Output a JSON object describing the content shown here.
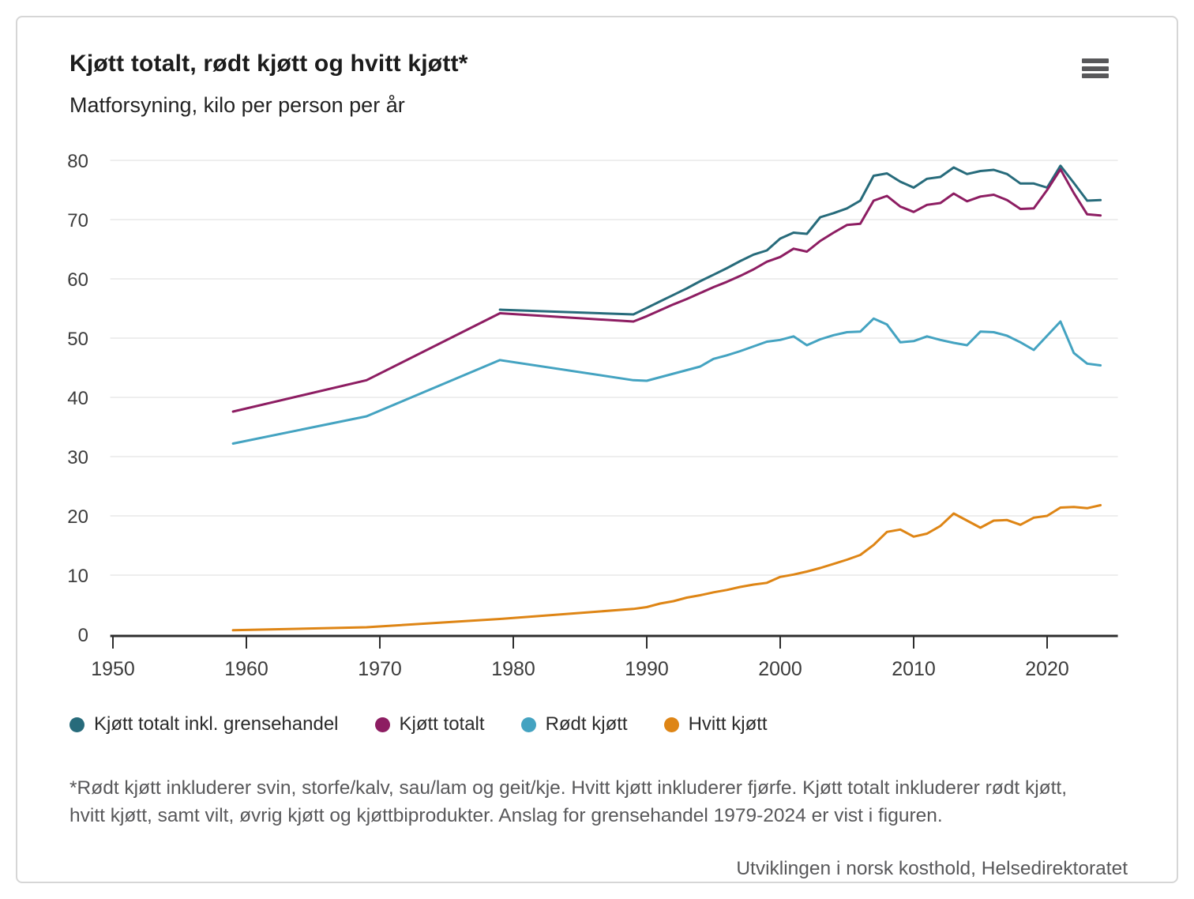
{
  "header": {
    "title": "Kjøtt totalt, rødt kjøtt og hvitt kjøtt*",
    "subtitle": "Matforsyning, kilo per person per år",
    "menu_icon": "hamburger-icon"
  },
  "footnote": "*Rødt kjøtt inkluderer svin, storfe/kalv, sau/lam og geit/kje. Hvitt kjøtt inkluderer fjørfe. Kjøtt totalt inkluderer rødt kjøtt, hvitt kjøtt, samt vilt, øvrig kjøtt og kjøttbiprodukter. Anslag for grensehandel 1979-2024 er vist i figuren.",
  "source": "Utviklingen i norsk kosthold, Helsedirektoratet",
  "style": {
    "background": "#ffffff",
    "card_border": "#d6d6d6",
    "grid_color": "#e8e8e8",
    "axis_color": "#2d2d2d",
    "tick_color": "#3c3c3c",
    "title_color": "#1c1c1c",
    "muted_text_color": "#58585a"
  },
  "chart_data": {
    "type": "line",
    "title": "Kjøtt totalt, rødt kjøtt og hvitt kjøtt*",
    "subtitle": "Matforsyning, kilo per person per år",
    "xlabel": "",
    "ylabel": "kilo per person per år",
    "xlim": [
      1949.8,
      2025.3
    ],
    "ylim": [
      0,
      80
    ],
    "xticks": [
      1950,
      1960,
      1970,
      1980,
      1990,
      2000,
      2010,
      2020
    ],
    "yticks": [
      0,
      10,
      20,
      30,
      40,
      50,
      60,
      70,
      80
    ],
    "grid": true,
    "legend_position": "bottom",
    "series": [
      {
        "name": "Kjøtt totalt inkl. grensehandel",
        "color": "#276b7b",
        "points": [
          [
            1979,
            54.8
          ],
          [
            1989,
            54.0
          ],
          [
            1990,
            55.1
          ],
          [
            1991,
            56.2
          ],
          [
            1992,
            57.3
          ],
          [
            1993,
            58.4
          ],
          [
            1994,
            59.6
          ],
          [
            1995,
            60.7
          ],
          [
            1996,
            61.8
          ],
          [
            1997,
            63.0
          ],
          [
            1998,
            64.1
          ],
          [
            1999,
            64.8
          ],
          [
            2000,
            66.8
          ],
          [
            2001,
            67.8
          ],
          [
            2002,
            67.6
          ],
          [
            2003,
            70.4
          ],
          [
            2004,
            71.1
          ],
          [
            2005,
            71.9
          ],
          [
            2006,
            73.2
          ],
          [
            2007,
            77.4
          ],
          [
            2008,
            77.8
          ],
          [
            2009,
            76.4
          ],
          [
            2010,
            75.4
          ],
          [
            2011,
            76.9
          ],
          [
            2012,
            77.2
          ],
          [
            2013,
            78.8
          ],
          [
            2014,
            77.7
          ],
          [
            2015,
            78.2
          ],
          [
            2016,
            78.4
          ],
          [
            2017,
            77.7
          ],
          [
            2018,
            76.1
          ],
          [
            2019,
            76.1
          ],
          [
            2020,
            75.4
          ],
          [
            2021,
            79.1
          ],
          [
            2022,
            76.2
          ],
          [
            2023,
            73.2
          ],
          [
            2024,
            73.3
          ]
        ]
      },
      {
        "name": "Kjøtt totalt",
        "color": "#8d1d62",
        "points": [
          [
            1959,
            37.6
          ],
          [
            1969,
            42.9
          ],
          [
            1979,
            54.2
          ],
          [
            1989,
            52.8
          ],
          [
            1990,
            53.7
          ],
          [
            1991,
            54.7
          ],
          [
            1992,
            55.7
          ],
          [
            1993,
            56.6
          ],
          [
            1994,
            57.6
          ],
          [
            1995,
            58.6
          ],
          [
            1996,
            59.5
          ],
          [
            1997,
            60.5
          ],
          [
            1998,
            61.6
          ],
          [
            1999,
            62.9
          ],
          [
            2000,
            63.7
          ],
          [
            2001,
            65.1
          ],
          [
            2002,
            64.6
          ],
          [
            2003,
            66.4
          ],
          [
            2004,
            67.8
          ],
          [
            2005,
            69.1
          ],
          [
            2006,
            69.3
          ],
          [
            2007,
            73.2
          ],
          [
            2008,
            74.0
          ],
          [
            2009,
            72.2
          ],
          [
            2010,
            71.3
          ],
          [
            2011,
            72.5
          ],
          [
            2012,
            72.8
          ],
          [
            2013,
            74.4
          ],
          [
            2014,
            73.1
          ],
          [
            2015,
            73.9
          ],
          [
            2016,
            74.2
          ],
          [
            2017,
            73.3
          ],
          [
            2018,
            71.8
          ],
          [
            2019,
            71.9
          ],
          [
            2020,
            75.0
          ],
          [
            2021,
            78.5
          ],
          [
            2022,
            74.5
          ],
          [
            2023,
            70.9
          ],
          [
            2024,
            70.7
          ]
        ]
      },
      {
        "name": "Rødt kjøtt",
        "color": "#44a3c1",
        "points": [
          [
            1959,
            32.2
          ],
          [
            1969,
            36.8
          ],
          [
            1979,
            46.3
          ],
          [
            1989,
            42.9
          ],
          [
            1990,
            42.8
          ],
          [
            1991,
            43.4
          ],
          [
            1992,
            44.0
          ],
          [
            1993,
            44.6
          ],
          [
            1994,
            45.2
          ],
          [
            1995,
            46.5
          ],
          [
            1996,
            47.1
          ],
          [
            1997,
            47.8
          ],
          [
            1998,
            48.6
          ],
          [
            1999,
            49.4
          ],
          [
            2000,
            49.7
          ],
          [
            2001,
            50.3
          ],
          [
            2002,
            48.8
          ],
          [
            2003,
            49.8
          ],
          [
            2004,
            50.5
          ],
          [
            2005,
            51.0
          ],
          [
            2006,
            51.1
          ],
          [
            2007,
            53.3
          ],
          [
            2008,
            52.3
          ],
          [
            2009,
            49.3
          ],
          [
            2010,
            49.5
          ],
          [
            2011,
            50.3
          ],
          [
            2012,
            49.7
          ],
          [
            2013,
            49.2
          ],
          [
            2014,
            48.8
          ],
          [
            2015,
            51.1
          ],
          [
            2016,
            51.0
          ],
          [
            2017,
            50.4
          ],
          [
            2018,
            49.3
          ],
          [
            2019,
            48.0
          ],
          [
            2020,
            50.4
          ],
          [
            2021,
            52.8
          ],
          [
            2022,
            47.5
          ],
          [
            2023,
            45.7
          ],
          [
            2024,
            45.4
          ]
        ]
      },
      {
        "name": "Hvitt kjøtt",
        "color": "#de8515",
        "points": [
          [
            1959,
            0.7
          ],
          [
            1969,
            1.2
          ],
          [
            1979,
            2.6
          ],
          [
            1989,
            4.3
          ],
          [
            1990,
            4.6
          ],
          [
            1991,
            5.2
          ],
          [
            1992,
            5.6
          ],
          [
            1993,
            6.2
          ],
          [
            1994,
            6.6
          ],
          [
            1995,
            7.1
          ],
          [
            1996,
            7.5
          ],
          [
            1997,
            8.0
          ],
          [
            1998,
            8.4
          ],
          [
            1999,
            8.7
          ],
          [
            2000,
            9.7
          ],
          [
            2001,
            10.1
          ],
          [
            2002,
            10.6
          ],
          [
            2003,
            11.2
          ],
          [
            2004,
            11.9
          ],
          [
            2005,
            12.6
          ],
          [
            2006,
            13.4
          ],
          [
            2007,
            15.1
          ],
          [
            2008,
            17.3
          ],
          [
            2009,
            17.7
          ],
          [
            2010,
            16.5
          ],
          [
            2011,
            17.0
          ],
          [
            2012,
            18.3
          ],
          [
            2013,
            20.4
          ],
          [
            2014,
            19.2
          ],
          [
            2015,
            18.0
          ],
          [
            2016,
            19.2
          ],
          [
            2017,
            19.3
          ],
          [
            2018,
            18.5
          ],
          [
            2019,
            19.7
          ],
          [
            2020,
            20.0
          ],
          [
            2021,
            21.4
          ],
          [
            2022,
            21.5
          ],
          [
            2023,
            21.3
          ],
          [
            2024,
            21.8
          ]
        ]
      }
    ]
  }
}
